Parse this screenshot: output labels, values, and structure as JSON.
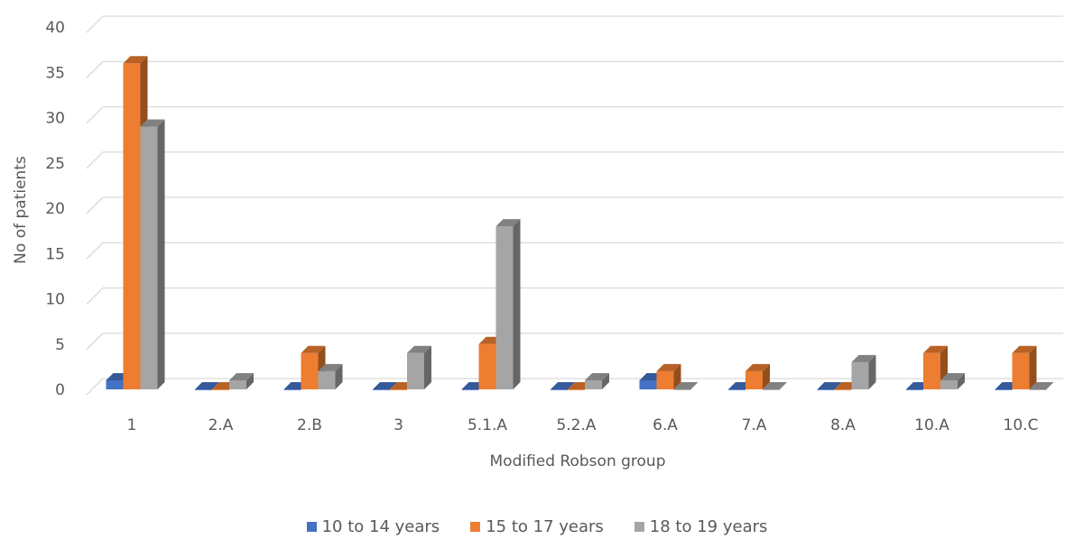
{
  "chart_data": {
    "type": "bar",
    "style": "3d-clustered-column",
    "categories": [
      "1",
      "2.A",
      "2.B",
      "3",
      "5.1.A",
      "5.2.A",
      "6.A",
      "7.A",
      "8.A",
      "10.A",
      "10.C"
    ],
    "series": [
      {
        "name": "10 to 14 years",
        "color": "#4472C4",
        "values": [
          1,
          0,
          0,
          0,
          0,
          0,
          1,
          0,
          0,
          0,
          0
        ]
      },
      {
        "name": "15 to 17 years",
        "color": "#ED7D31",
        "values": [
          36,
          0,
          4,
          0,
          5,
          0,
          2,
          2,
          0,
          4,
          4
        ]
      },
      {
        "name": "18 to 19 years",
        "color": "#A5A5A5",
        "values": [
          29,
          1,
          2,
          4,
          18,
          1,
          0,
          0,
          3,
          1,
          0
        ]
      }
    ],
    "xlabel": "Modified Robson group",
    "ylabel": "No of patients",
    "ylim": [
      0,
      40
    ],
    "yticks": [
      0,
      5,
      10,
      15,
      20,
      25,
      30,
      35,
      40
    ],
    "grid": true,
    "legend_position": "bottom"
  }
}
